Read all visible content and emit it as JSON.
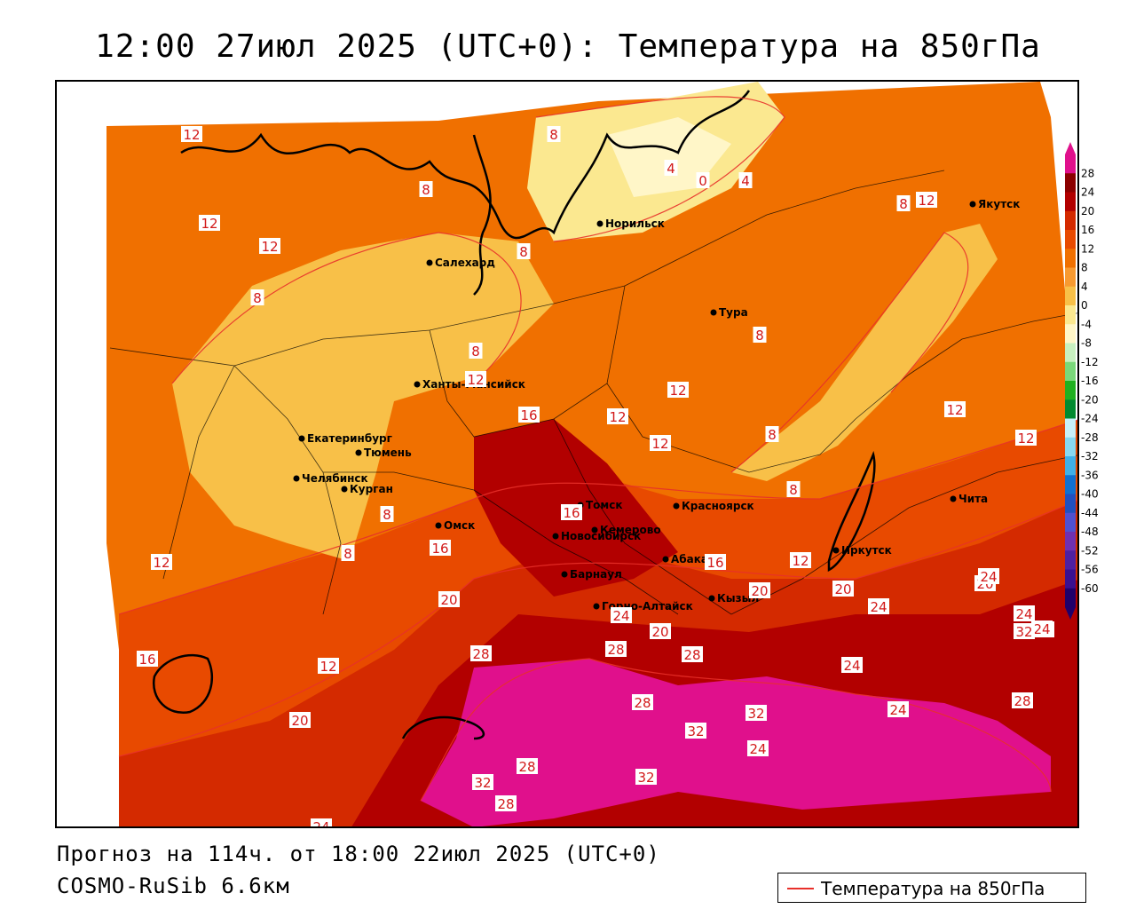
{
  "header": {
    "title": "12:00 27июл 2025 (UTC+0): Температура на 850гПа"
  },
  "footer": {
    "forecast": "Прогноз на 114ч. от 18:00 22июл 2025 (UTC+0)",
    "model": "COSMO-RuSib 6.6км"
  },
  "legend": {
    "label": "Температура на 850гПа",
    "line_color": "#e8302a"
  },
  "colorbar": {
    "ticks": [
      "28",
      "24",
      "20",
      "16",
      "12",
      "8",
      "4",
      "0",
      "-4",
      "-8",
      "-12",
      "-16",
      "-20",
      "-24",
      "-28",
      "-32",
      "-36",
      "-40",
      "-44",
      "-48",
      "-52",
      "-56",
      "-60"
    ],
    "colors": [
      "#e0108c",
      "#8b0000",
      "#b20000",
      "#d42a00",
      "#e84a00",
      "#f07000",
      "#f89a30",
      "#f8c048",
      "#fbe890",
      "#fff6c8",
      "#c8f0c0",
      "#7ad87a",
      "#20b020",
      "#008a30",
      "#c8f0f8",
      "#88d8f0",
      "#40b0e8",
      "#1070d0",
      "#2050c0",
      "#5050d0",
      "#7030b0",
      "#5020a0",
      "#3a1090",
      "#20006a"
    ]
  },
  "cities": [
    {
      "name": "Норильск"
    },
    {
      "name": "Якутск"
    },
    {
      "name": "Салехард"
    },
    {
      "name": "Тура"
    },
    {
      "name": "Ханты-Мансийск"
    },
    {
      "name": "Екатеринбург"
    },
    {
      "name": "Тюмень"
    },
    {
      "name": "Челябинск"
    },
    {
      "name": "Курган"
    },
    {
      "name": "Омск"
    },
    {
      "name": "Новосибирск"
    },
    {
      "name": "Томск"
    },
    {
      "name": "Кемерово"
    },
    {
      "name": "Красноярск"
    },
    {
      "name": "Абакан"
    },
    {
      "name": "Барнаул"
    },
    {
      "name": "Горно-Алтайск"
    },
    {
      "name": "Кызыл"
    },
    {
      "name": "Иркутск"
    },
    {
      "name": "Чита"
    }
  ],
  "contour_labels": [
    "12",
    "12",
    "12",
    "8",
    "8",
    "8",
    "8",
    "4",
    "0",
    "4",
    "8",
    "12",
    "8",
    "12",
    "8",
    "12",
    "16",
    "12",
    "12",
    "12",
    "12",
    "8",
    "8",
    "16",
    "12",
    "8",
    "8",
    "20",
    "16",
    "16",
    "20",
    "24",
    "20",
    "12",
    "12",
    "16",
    "20",
    "28",
    "24",
    "20",
    "28",
    "24",
    "28",
    "24",
    "28",
    "32",
    "28",
    "32",
    "24",
    "20",
    "24",
    "24",
    "32",
    "28",
    "32",
    "28",
    "24",
    "32",
    "24",
    "28"
  ]
}
